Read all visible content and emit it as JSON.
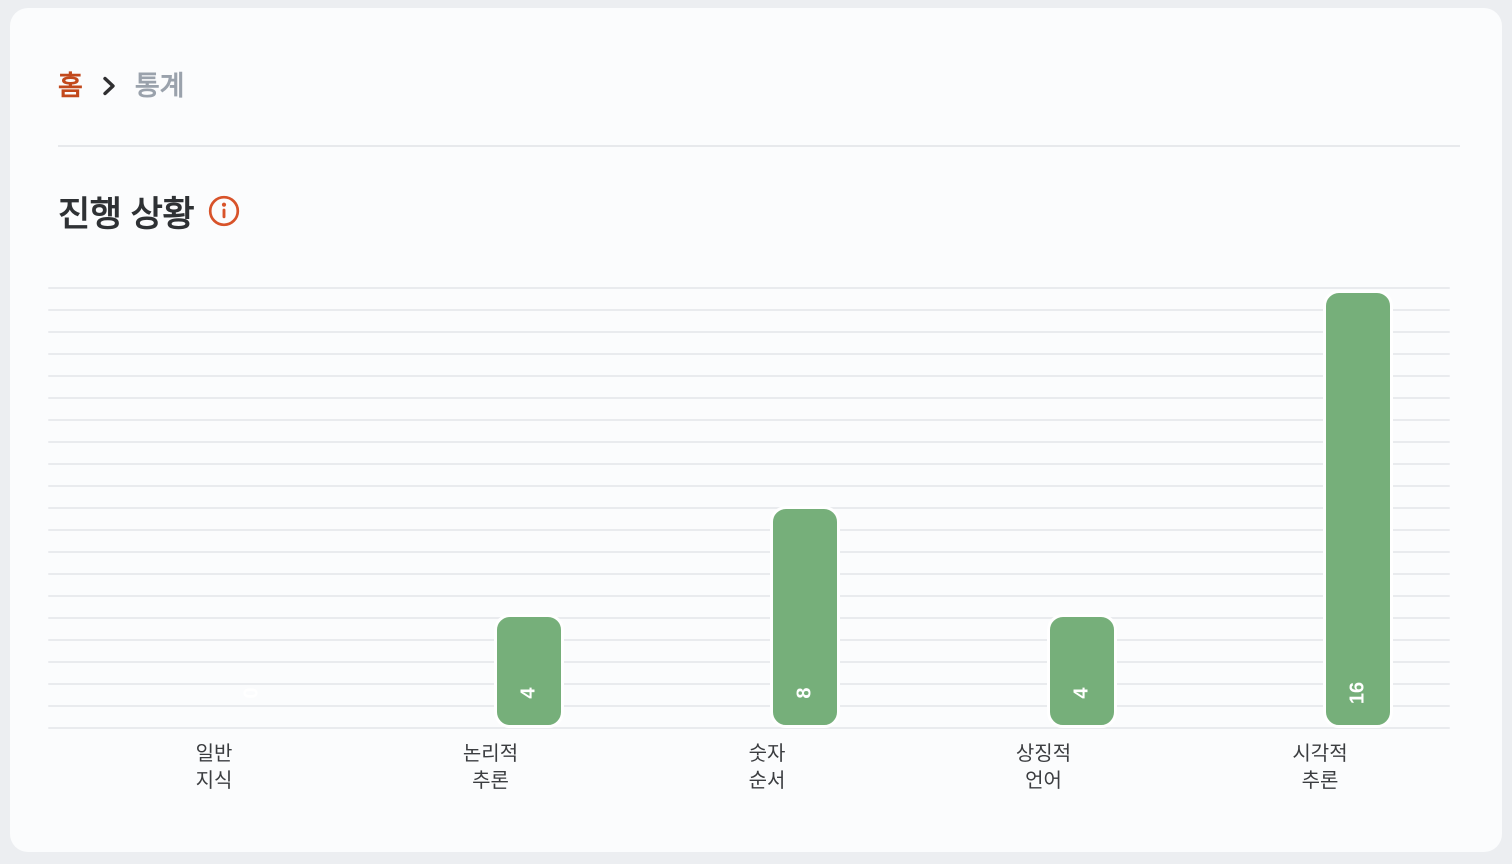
{
  "breadcrumb": {
    "home_label": "홈",
    "current_label": "통계"
  },
  "header": {
    "title": "진행 상황"
  },
  "colors": {
    "page_bg": "#eceef1",
    "card_bg": "#fbfcfd",
    "accent_red": "#c2491c",
    "info_icon": "#d8532a",
    "bar_green": "#76af7a",
    "grid_line": "#e9ebee",
    "text_dark": "#2e3134",
    "text_gray": "#9aa2ac",
    "value_label": "#ffffff"
  },
  "chart_data": {
    "type": "bar",
    "title": "진행 상황",
    "categories": [
      "일반 지식",
      "논리적 추론",
      "숫자 순서",
      "상징적 언어",
      "시각적 추론"
    ],
    "values": [
      0,
      4,
      8,
      4,
      16
    ],
    "bar_labels": [
      "0",
      "4",
      "8",
      "4",
      "16"
    ],
    "xlabel": "",
    "ylabel": "",
    "ylim": [
      0,
      16.3
    ],
    "grid": "horizontal-only",
    "gridline_count": 21,
    "legend": "none",
    "bar_color": "#76af7a",
    "value_label_color": "#ffffff",
    "value_label_rotation": -90
  }
}
